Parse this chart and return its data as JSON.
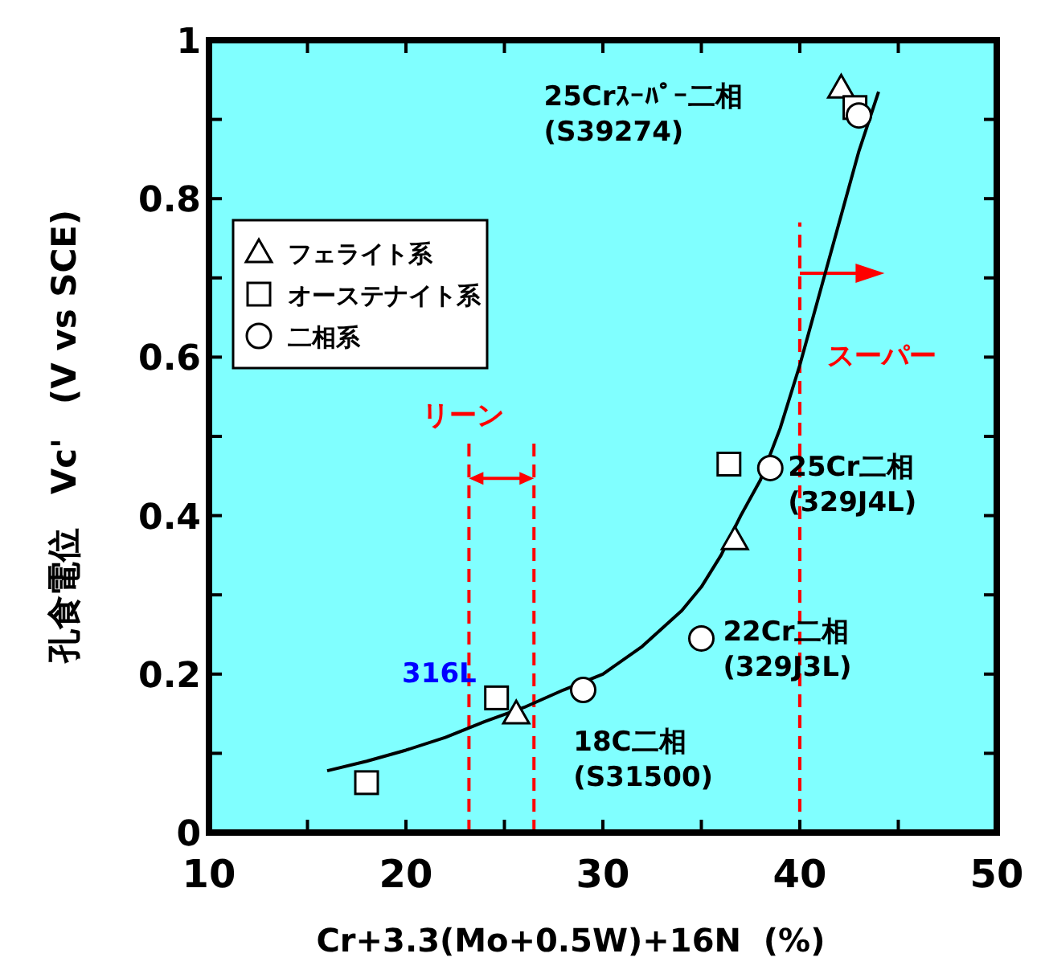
{
  "chart_data": {
    "type": "scatter",
    "xlabel": "Cr+3.3(Mo+0.5W)+16N  (%)",
    "ylabel": "孔食電位　Vc'　(V vs SCE)",
    "xlim": [
      10,
      50
    ],
    "ylim": [
      0,
      1
    ],
    "xticks": [
      10,
      {
        "value": 15,
        "label": null
      },
      20,
      {
        "value": 25,
        "label": null
      },
      30,
      {
        "value": 35,
        "label": null
      },
      40,
      {
        "value": 45,
        "label": null
      },
      50
    ],
    "yticks": [
      0,
      {
        "value": 0.1,
        "label": null
      },
      0.2,
      {
        "value": 0.3,
        "label": null
      },
      0.4,
      {
        "value": 0.5,
        "label": null
      },
      0.6,
      {
        "value": 0.7,
        "label": null
      },
      0.8,
      {
        "value": 0.9,
        "label": null
      },
      1
    ],
    "legend": "top left",
    "grid": false,
    "series": [
      {
        "name": "フェライト系",
        "type": "scatter",
        "marker": "triangle",
        "color": "#ffffff",
        "x": [
          42.1,
          36.7,
          25.6
        ],
        "values": [
          0.94,
          0.37,
          0.15
        ]
      },
      {
        "name": "オーステナイト系",
        "type": "scatter",
        "marker": "square",
        "color": "#ffffff",
        "x": [
          18.0,
          24.6,
          36.4,
          42.8
        ],
        "values": [
          0.063,
          0.17,
          0.465,
          0.915
        ]
      },
      {
        "name": "二相系",
        "type": "scatter",
        "marker": "circle",
        "color": "#ffffff",
        "x": [
          43.0,
          38.5,
          35.0,
          29.0
        ],
        "values": [
          0.905,
          0.46,
          0.245,
          0.18
        ]
      },
      {
        "type": "line",
        "marker": "none",
        "line_style": "solid",
        "color": "#000000",
        "x": [
          16,
          18,
          20,
          22,
          24,
          26,
          28,
          30,
          32,
          34,
          35,
          36,
          37,
          38,
          39,
          40,
          41,
          42,
          43,
          44
        ],
        "values": [
          0.078,
          0.09,
          0.104,
          0.12,
          0.14,
          0.158,
          0.18,
          0.2,
          0.235,
          0.28,
          0.31,
          0.35,
          0.4,
          0.445,
          0.51,
          0.59,
          0.68,
          0.77,
          0.86,
          0.935
        ]
      }
    ],
    "ref_lines": [
      {
        "axis": "x",
        "value": 23.2,
        "color": "#ff0000",
        "line_style": "dashed"
      },
      {
        "axis": "x",
        "value": 26.5,
        "color": "#ff0000",
        "line_style": "dashed"
      },
      {
        "axis": "x",
        "value": 40,
        "color": "#ff0000",
        "line_style": "dashed"
      }
    ],
    "annotations": [
      "25Crｽｰﾊﾟｰ二相\n(S39274)",
      "25Cr二相\n(329J4L)",
      "22Cr二相\n(329J3L)",
      "18C二相\n(S31500)",
      "316L",
      "リーン",
      "スーパー"
    ]
  }
}
